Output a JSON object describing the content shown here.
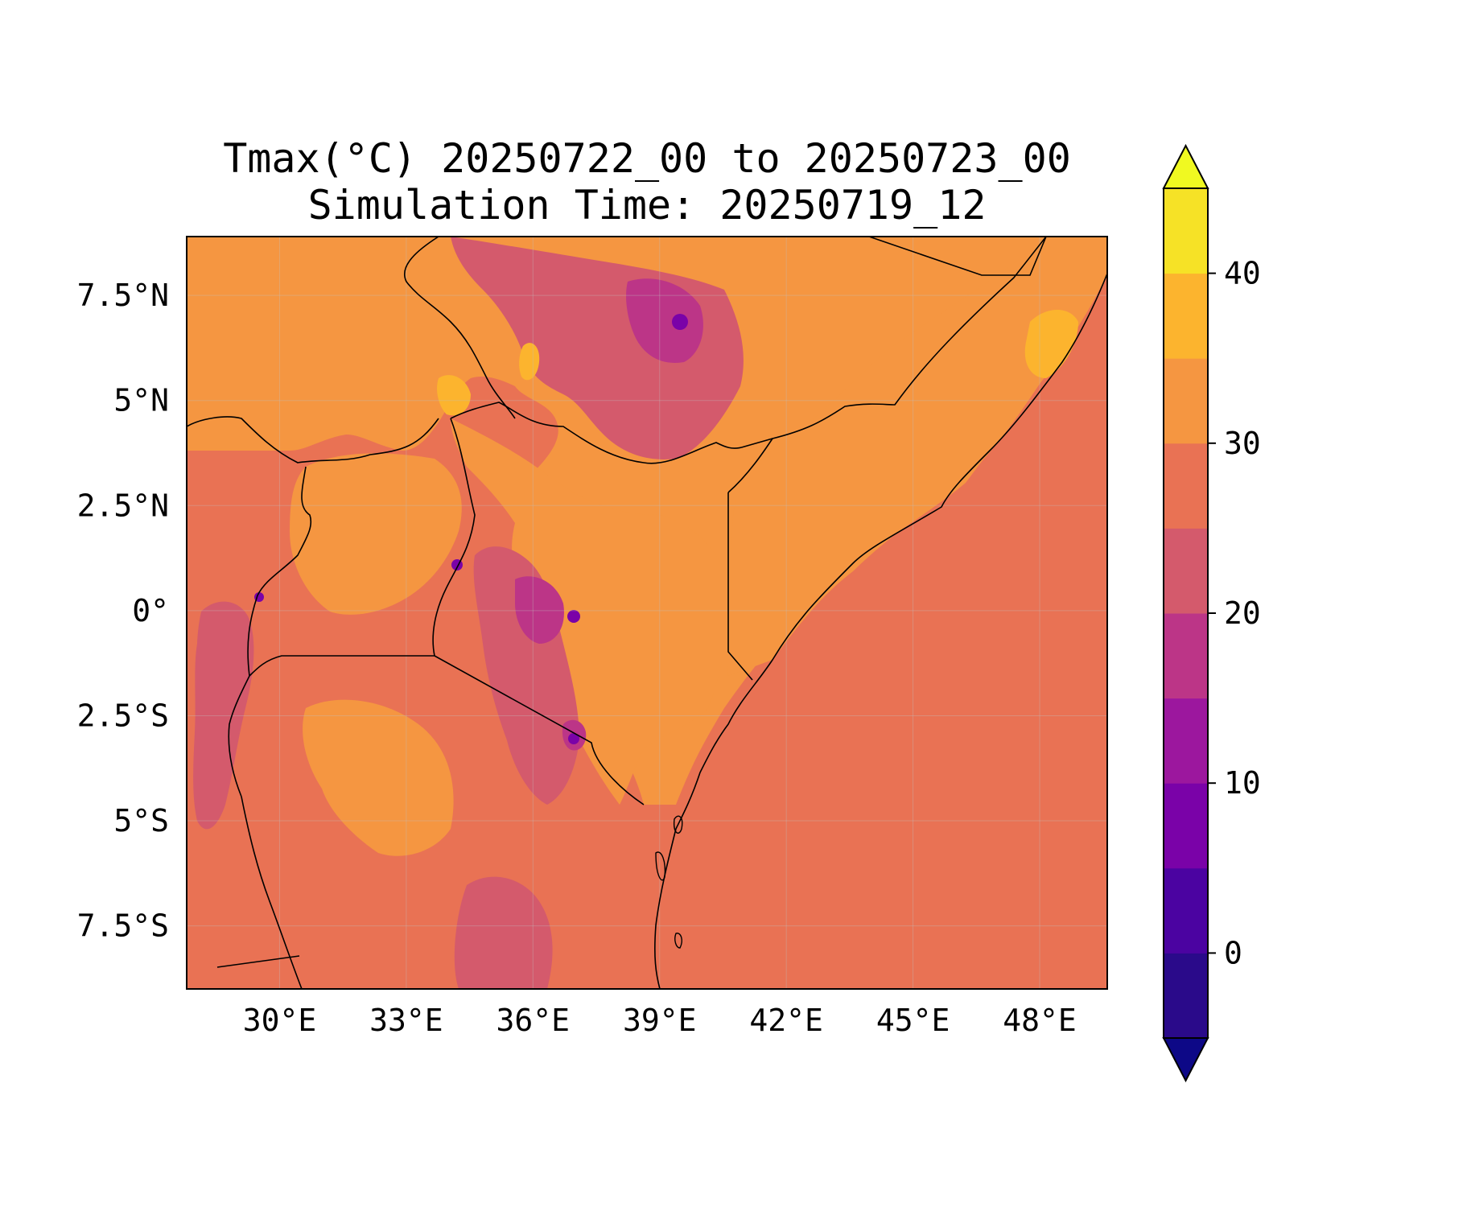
{
  "title": {
    "line1": "Tmax(°C) 20250722_00 to 20250723_00",
    "line2": "Simulation Time: 20250719_12"
  },
  "map": {
    "lon_range": [
      27.8,
      49.6
    ],
    "lat_range": [
      -9.0,
      8.9
    ],
    "lon_ticks": [
      {
        "value": 30,
        "label": "30°E"
      },
      {
        "value": 33,
        "label": "33°E"
      },
      {
        "value": 36,
        "label": "36°E"
      },
      {
        "value": 39,
        "label": "39°E"
      },
      {
        "value": 42,
        "label": "42°E"
      },
      {
        "value": 45,
        "label": "45°E"
      },
      {
        "value": 48,
        "label": "48°E"
      }
    ],
    "lat_ticks": [
      {
        "value": 7.5,
        "label": "7.5°N"
      },
      {
        "value": 5,
        "label": "5°N"
      },
      {
        "value": 2.5,
        "label": "2.5°N"
      },
      {
        "value": 0,
        "label": "0°"
      },
      {
        "value": -2.5,
        "label": "2.5°S"
      },
      {
        "value": -5,
        "label": "5°S"
      },
      {
        "value": -7.5,
        "label": "7.5°S"
      }
    ],
    "gridlines": true
  },
  "colorbar": {
    "levels": [
      -5,
      0,
      5,
      10,
      15,
      20,
      25,
      30,
      35,
      40,
      45
    ],
    "colors": [
      "#2a0a8a",
      "#4b03a1",
      "#7a02a8",
      "#9c179e",
      "#bc3587",
      "#d45a6c",
      "#e97254",
      "#f59641",
      "#fcb42e",
      "#f6e226"
    ],
    "under_color": "#0d0887",
    "over_color": "#f0f921",
    "extend": "both",
    "ticks": [
      {
        "value": 0,
        "label": "0"
      },
      {
        "value": 10,
        "label": "10"
      },
      {
        "value": 20,
        "label": "20"
      },
      {
        "value": 30,
        "label": "30"
      },
      {
        "value": 40,
        "label": "40"
      }
    ]
  }
}
